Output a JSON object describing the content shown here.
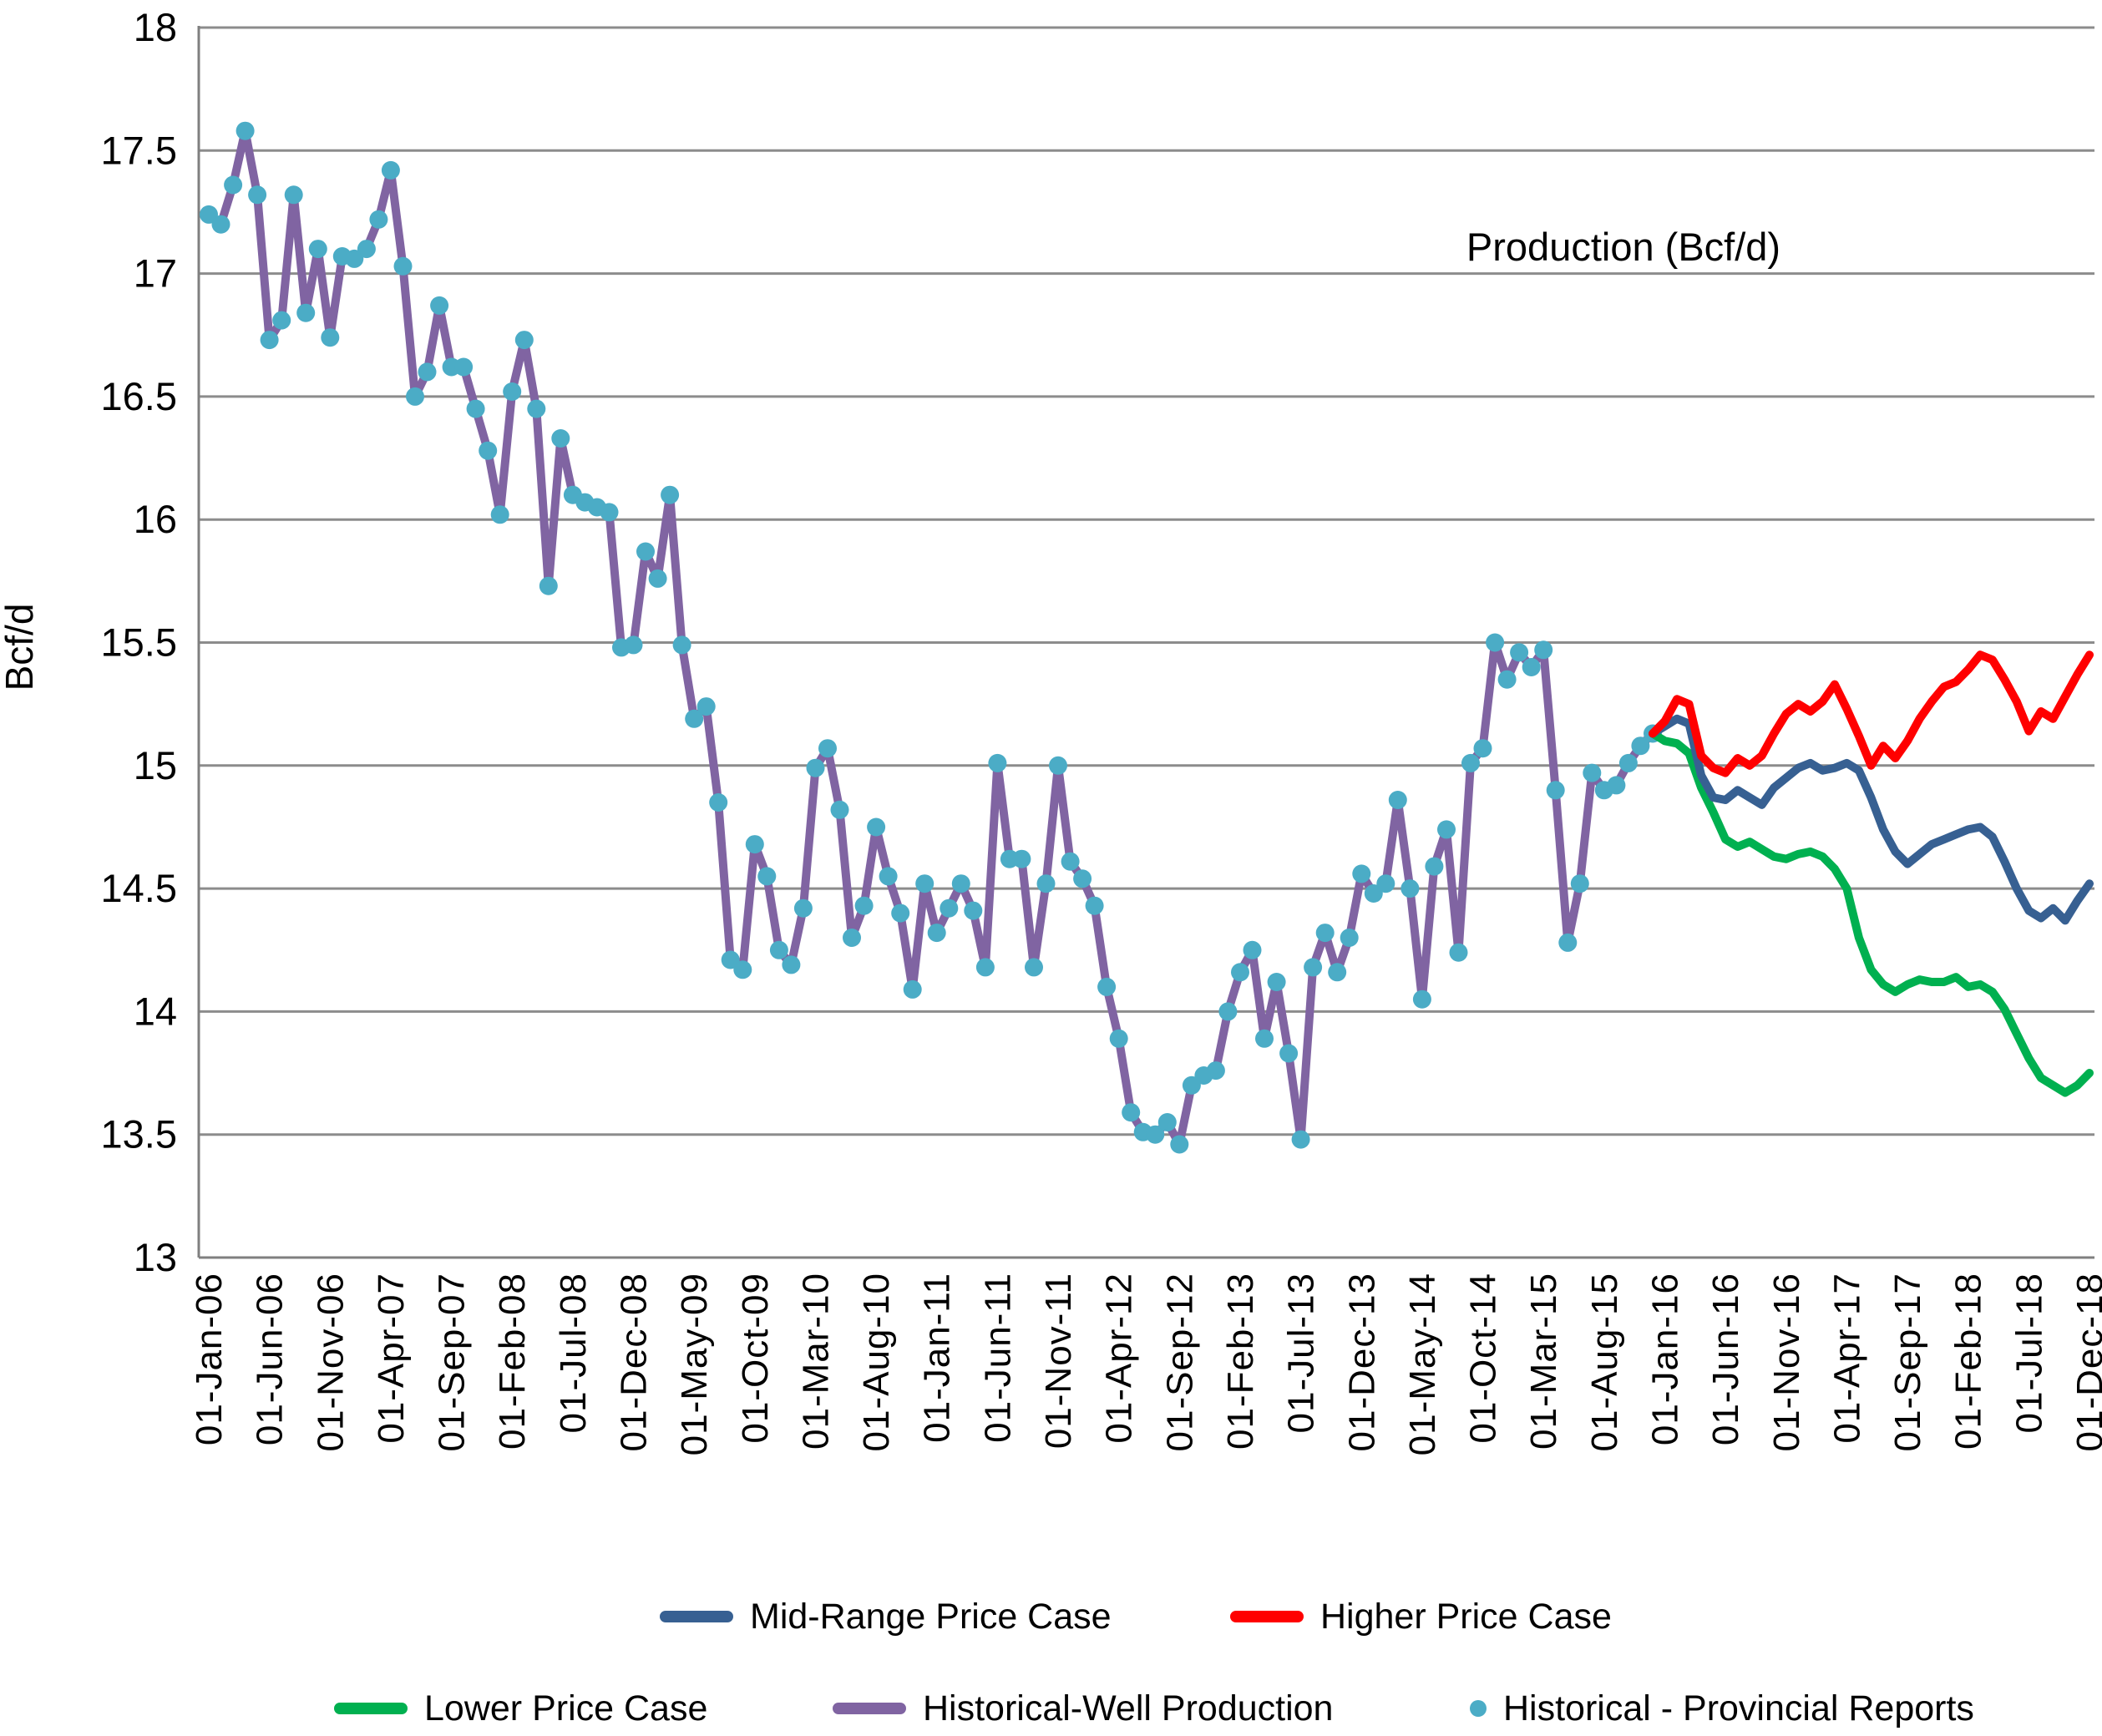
{
  "chart_data": {
    "type": "line",
    "title": "Production (Bcf/d)",
    "ylabel": "Bcf/d",
    "ylim": [
      13,
      18
    ],
    "ytick_step": 0.5,
    "y_tick_labels": [
      "18",
      "17.5",
      "17",
      "16.5",
      "16",
      "15.5",
      "15",
      "14.5",
      "14",
      "13.5",
      "13"
    ],
    "grid": "horizontal",
    "x_unit": "months from Jan-2006",
    "x_tick_month_step": 5,
    "x_tick_labels": [
      "01-Jan-06",
      "01-Jun-06",
      "01-Nov-06",
      "01-Apr-07",
      "01-Sep-07",
      "01-Feb-08",
      "01-Jul-08",
      "01-Dec-08",
      "01-May-09",
      "01-Oct-09",
      "01-Mar-10",
      "01-Aug-10",
      "01-Jan-11",
      "01-Jun-11",
      "01-Nov-11",
      "01-Apr-12",
      "01-Sep-12",
      "01-Feb-13",
      "01-Jul-13",
      "01-Dec-13",
      "01-May-14",
      "01-Oct-14",
      "01-Mar-15",
      "01-Aug-15",
      "01-Jan-16",
      "01-Jun-16",
      "01-Nov-16",
      "01-Apr-17",
      "01-Sep-17",
      "01-Feb-18",
      "01-Jul-18",
      "01-Dec-18"
    ],
    "series": [
      {
        "name": "Historical-Well Production",
        "style": "line",
        "color": "#8064A2",
        "line_width": 10,
        "start_month": 0,
        "values": [
          17.24,
          17.2,
          17.36,
          17.58,
          17.32,
          16.73,
          16.81,
          17.32,
          16.84,
          17.1,
          16.74,
          17.07,
          17.06,
          17.1,
          17.22,
          17.42,
          17.03,
          16.5,
          16.6,
          16.87,
          16.62,
          16.62,
          16.45,
          16.28,
          16.02,
          16.52,
          16.73,
          16.45,
          15.73,
          16.33,
          16.1,
          16.07,
          16.05,
          16.03,
          15.48,
          15.49,
          15.87,
          15.76,
          16.1,
          15.49,
          15.19,
          15.24,
          14.85,
          14.21,
          14.17,
          14.68,
          14.55,
          14.25,
          14.19,
          14.42,
          14.99,
          15.07,
          14.82,
          14.3,
          14.43,
          14.75,
          14.55,
          14.4,
          14.09,
          14.52,
          14.32,
          14.42,
          14.52,
          14.41,
          14.18,
          15.01,
          14.62,
          14.62,
          14.18,
          14.52,
          15.0,
          14.61,
          14.54,
          14.43,
          14.1,
          13.89,
          13.59,
          13.51,
          13.5,
          13.55,
          13.46,
          13.7,
          13.74,
          13.76,
          14.0,
          14.16,
          14.25,
          13.89,
          14.12,
          13.83,
          13.48,
          14.18,
          14.32,
          14.16,
          14.3,
          14.56,
          14.48,
          14.52,
          14.86,
          14.5,
          14.05,
          14.59,
          14.74,
          14.24,
          15.01,
          15.07,
          15.5,
          15.35,
          15.46,
          15.4,
          15.47,
          14.9,
          14.28,
          14.52,
          14.97,
          14.9,
          14.92,
          15.01,
          15.08,
          15.13,
          15.18
        ]
      },
      {
        "name": "Historical - Provincial Reports",
        "style": "dots",
        "color": "#4BACC6",
        "dot_radius": 11,
        "start_month": 0,
        "values": [
          17.24,
          17.2,
          17.36,
          17.58,
          17.32,
          16.73,
          16.81,
          17.32,
          16.84,
          17.1,
          16.74,
          17.07,
          17.06,
          17.1,
          17.22,
          17.42,
          17.03,
          16.5,
          16.6,
          16.87,
          16.62,
          16.62,
          16.45,
          16.28,
          16.02,
          16.52,
          16.73,
          16.45,
          15.73,
          16.33,
          16.1,
          16.07,
          16.05,
          16.03,
          15.48,
          15.49,
          15.87,
          15.76,
          16.1,
          15.49,
          15.19,
          15.24,
          14.85,
          14.21,
          14.17,
          14.68,
          14.55,
          14.25,
          14.19,
          14.42,
          14.99,
          15.07,
          14.82,
          14.3,
          14.43,
          14.75,
          14.55,
          14.4,
          14.09,
          14.52,
          14.32,
          14.42,
          14.52,
          14.41,
          14.18,
          15.01,
          14.62,
          14.62,
          14.18,
          14.52,
          15.0,
          14.61,
          14.54,
          14.43,
          14.1,
          13.89,
          13.59,
          13.51,
          13.5,
          13.55,
          13.46,
          13.7,
          13.74,
          13.76,
          14.0,
          14.16,
          14.25,
          13.89,
          14.12,
          13.83,
          13.48,
          14.18,
          14.32,
          14.16,
          14.3,
          14.56,
          14.48,
          14.52,
          14.86,
          14.5,
          14.05,
          14.59,
          14.74,
          14.24,
          15.01,
          15.07,
          15.5,
          15.35,
          15.46,
          15.4,
          15.47,
          14.9,
          14.28,
          14.52,
          14.97,
          14.9,
          14.92,
          15.01,
          15.08,
          15.13
        ]
      },
      {
        "name": "Lower Price Case",
        "style": "line",
        "color": "#00B050",
        "line_width": 10,
        "start_month": 119,
        "values": [
          15.13,
          15.1,
          15.09,
          15.05,
          14.91,
          14.81,
          14.7,
          14.67,
          14.69,
          14.66,
          14.63,
          14.62,
          14.64,
          14.65,
          14.63,
          14.58,
          14.5,
          14.3,
          14.17,
          14.11,
          14.08,
          14.11,
          14.13,
          14.12,
          14.12,
          14.14,
          14.1,
          14.11,
          14.08,
          14.01,
          13.91,
          13.81,
          13.73,
          13.7,
          13.67,
          13.7,
          13.75
        ]
      },
      {
        "name": "Mid-Range Price Case",
        "style": "line",
        "color": "#376092",
        "line_width": 10,
        "start_month": 119,
        "values": [
          15.13,
          15.16,
          15.19,
          15.17,
          14.96,
          14.87,
          14.86,
          14.9,
          14.87,
          14.84,
          14.91,
          14.95,
          14.99,
          15.01,
          14.98,
          14.99,
          15.01,
          14.98,
          14.87,
          14.74,
          14.65,
          14.6,
          14.64,
          14.68,
          14.7,
          14.72,
          14.74,
          14.75,
          14.71,
          14.61,
          14.5,
          14.41,
          14.38,
          14.42,
          14.37,
          14.45,
          14.52
        ]
      },
      {
        "name": "Higher Price Case",
        "style": "line",
        "color": "#FF0000",
        "line_width": 10,
        "start_month": 119,
        "values": [
          15.13,
          15.18,
          15.27,
          15.25,
          15.04,
          14.99,
          14.97,
          15.03,
          15.0,
          15.04,
          15.13,
          15.21,
          15.25,
          15.22,
          15.26,
          15.33,
          15.23,
          15.12,
          15.0,
          15.08,
          15.03,
          15.1,
          15.19,
          15.26,
          15.32,
          15.34,
          15.39,
          15.45,
          15.43,
          15.35,
          15.26,
          15.14,
          15.22,
          15.19,
          15.28,
          15.37,
          15.45
        ]
      }
    ],
    "layout": {
      "plot_left": 238,
      "plot_right": 2508,
      "plot_top": 33,
      "plot_bottom": 1506,
      "grid_color": "#8C8C8C",
      "axis_color": "#7F7F7F"
    },
    "legend_position": "bottom"
  },
  "legend": {
    "mid_range_label": "Mid-Range Price Case",
    "higher_label": "Higher Price Case",
    "lower_label": "Lower Price Case",
    "historical_well_label": "Historical-Well Production",
    "historical_provincial_label": "Historical - Provincial Reports"
  },
  "colors": {
    "mid_range": "#376092",
    "higher": "#FF0000",
    "lower": "#00B050",
    "historical_well": "#8064A2",
    "historical_provincial": "#4BACC6"
  },
  "titles": {
    "chart_title": "Production (Bcf/d)",
    "y_axis_title": "Bcf/d"
  }
}
